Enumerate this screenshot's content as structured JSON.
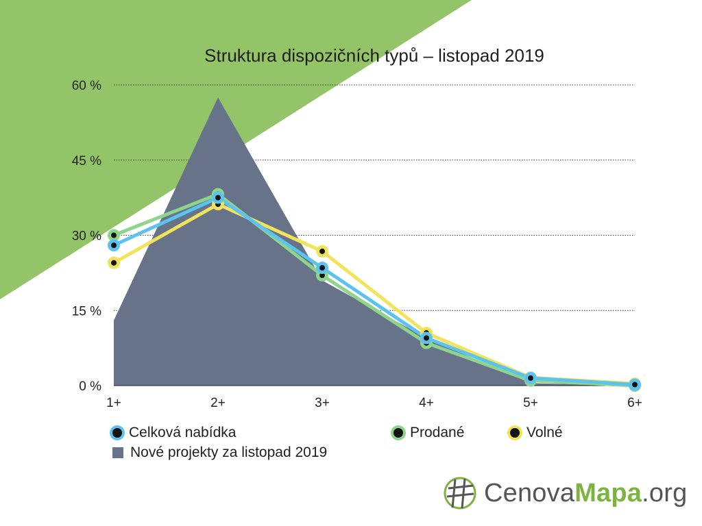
{
  "colors": {
    "background_triangle": "#94c468",
    "area": "#667389",
    "celkova": "#5cc3f0",
    "prodane": "#8fd48c",
    "volne": "#f2e35a",
    "marker_center": "#111111",
    "grid": "#333333"
  },
  "chart_data": {
    "type": "line",
    "title": "Struktura dispozičních typů – listopad 2019",
    "categories": [
      "1+",
      "2+",
      "3+",
      "4+",
      "5+",
      "6+"
    ],
    "y_ticks": [
      "0 %",
      "15 %",
      "30 %",
      "45 %",
      "60 %"
    ],
    "ylim": [
      0,
      60
    ],
    "grid": "horizontal-dotted",
    "area_series": {
      "name": "Nové projekty za listopad 2019",
      "values": [
        13,
        57.5,
        21,
        9.5,
        0.5,
        0
      ]
    },
    "series": [
      {
        "name": "Celková nabídka",
        "color_key": "celkova",
        "values": [
          28,
          37.5,
          23.5,
          9.5,
          1.5,
          0.2
        ]
      },
      {
        "name": "Prodané",
        "color_key": "prodane",
        "values": [
          30,
          38.2,
          22,
          8.5,
          1,
          0
        ]
      },
      {
        "name": "Volné",
        "color_key": "volne",
        "values": [
          24.5,
          36.2,
          26.8,
          10.5,
          1.6,
          0.4
        ]
      }
    ],
    "legend_placement": "bottom"
  },
  "logo": {
    "part1": "Cenova",
    "part2": "Mapa",
    "part3": ".org"
  }
}
